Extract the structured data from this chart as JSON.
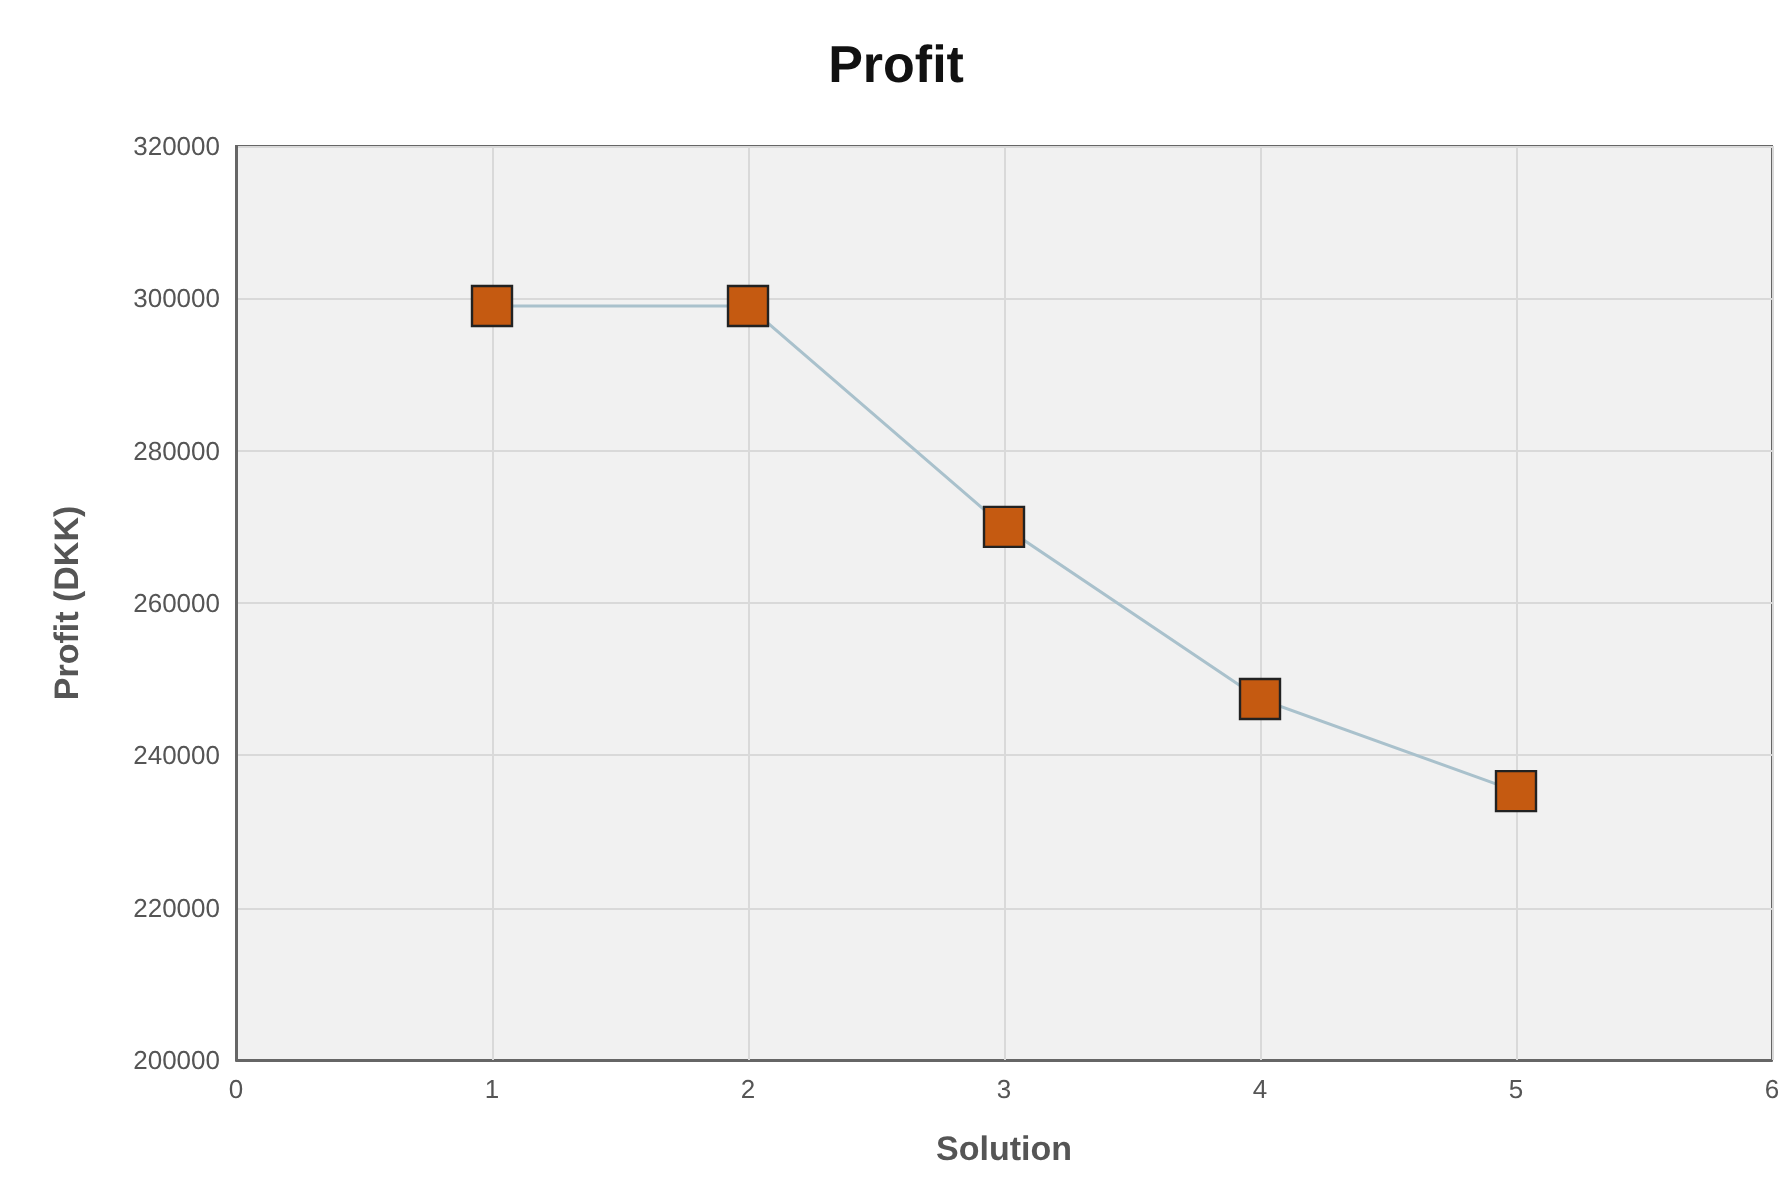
{
  "chart_data": {
    "type": "line",
    "title": "Profit",
    "xlabel": "Solution",
    "ylabel": "Profit (DKK)",
    "x": [
      1,
      2,
      3,
      4,
      5
    ],
    "series": [
      {
        "color": "#c55a11",
        "values": [
          299000,
          299000,
          270000,
          247400,
          235300
        ]
      }
    ],
    "xlim": [
      0,
      6
    ],
    "xticks": [
      0,
      1,
      2,
      3,
      4,
      5,
      6
    ],
    "ylim": [
      200000,
      320000
    ],
    "yticks": [
      200000,
      220000,
      240000,
      260000,
      280000,
      300000,
      320000
    ],
    "grid": true,
    "marker": "square",
    "line_style": "solid"
  }
}
